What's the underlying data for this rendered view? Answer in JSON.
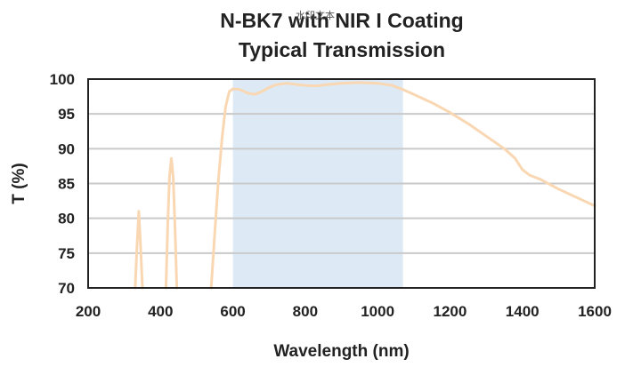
{
  "watermark": "水印文本",
  "chart_data": {
    "type": "line",
    "title": [
      "N-BK7 with NIR I Coating",
      "Typical Transmission"
    ],
    "xlabel": "Wavelength (nm)",
    "ylabel": "T (%)",
    "xlim": [
      200,
      1600
    ],
    "ylim": [
      70,
      100
    ],
    "xticks": [
      200,
      400,
      600,
      800,
      1000,
      1200,
      1400,
      1600
    ],
    "yticks": [
      70,
      75,
      80,
      85,
      90,
      95,
      100
    ],
    "grid": "horizontal",
    "highlight_band": {
      "x_start": 600,
      "x_end": 1070,
      "color": "#ddeaf6"
    },
    "line_color": "#f9d7b2",
    "series": [
      {
        "segments": [
          [
            [
              330,
              70
            ],
            [
              335,
              76
            ],
            [
              340,
              81
            ],
            [
              345,
              76
            ],
            [
              350,
              70
            ]
          ],
          [
            [
              415,
              70
            ],
            [
              420,
              79
            ],
            [
              425,
              86
            ],
            [
              430,
              88.6
            ],
            [
              435,
              86
            ],
            [
              440,
              79
            ],
            [
              445,
              70
            ]
          ],
          [
            [
              540,
              70
            ],
            [
              550,
              78
            ],
            [
              560,
              85.5
            ],
            [
              570,
              91.5
            ],
            [
              580,
              96
            ],
            [
              590,
              98.2
            ],
            [
              600,
              98.6
            ],
            [
              620,
              98.5
            ],
            [
              640,
              98
            ],
            [
              660,
              97.8
            ],
            [
              680,
              98.2
            ],
            [
              700,
              98.8
            ],
            [
              720,
              99.2
            ],
            [
              750,
              99.4
            ],
            [
              780,
              99.2
            ],
            [
              800,
              99.1
            ],
            [
              830,
              99.0
            ],
            [
              860,
              99.2
            ],
            [
              900,
              99.4
            ],
            [
              950,
              99.5
            ],
            [
              1000,
              99.4
            ],
            [
              1040,
              99.1
            ],
            [
              1070,
              98.5
            ],
            [
              1100,
              97.8
            ],
            [
              1150,
              96.6
            ],
            [
              1200,
              95.2
            ],
            [
              1250,
              93.6
            ],
            [
              1300,
              91.8
            ],
            [
              1350,
              90.0
            ],
            [
              1380,
              88.6
            ],
            [
              1400,
              87.0
            ],
            [
              1420,
              86.2
            ],
            [
              1450,
              85.6
            ],
            [
              1500,
              84.2
            ],
            [
              1550,
              83.0
            ],
            [
              1600,
              81.8
            ]
          ]
        ]
      }
    ]
  }
}
